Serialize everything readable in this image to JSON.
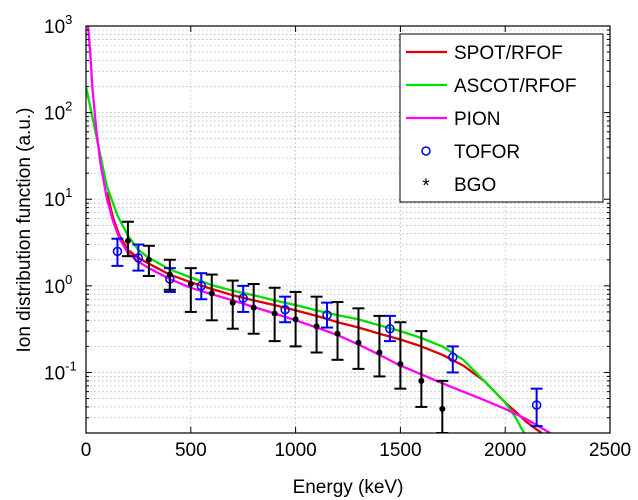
{
  "chart_data": {
    "type": "line",
    "xlabel": "Energy (keV)",
    "ylabel": "Ion distribution function (a.u.)",
    "xlim": [
      0,
      2500
    ],
    "ylim": [
      0.02,
      1000
    ],
    "y_scale": "log",
    "grid": true,
    "legend_position": "top-right",
    "x_ticks": [
      0,
      500,
      1000,
      1500,
      2000,
      2500
    ],
    "x_tick_labels": [
      "0",
      "500",
      "1000",
      "1500",
      "2000",
      "2500"
    ],
    "y_ticks": [
      {
        "value": 0.1,
        "base": "10",
        "exp": "-1"
      },
      {
        "value": 1,
        "base": "10",
        "exp": "0"
      },
      {
        "value": 10,
        "base": "10",
        "exp": "1"
      },
      {
        "value": 100,
        "base": "10",
        "exp": "2"
      },
      {
        "value": 1000,
        "base": "10",
        "exp": "3"
      }
    ],
    "series": [
      {
        "name": "SPOT/RFOF",
        "kind": "line",
        "color": "#e00000",
        "x": [
          100,
          130,
          160,
          200,
          250,
          300,
          400,
          500,
          600,
          700,
          800,
          900,
          1000,
          1100,
          1200,
          1300,
          1400,
          1500,
          1600,
          1700,
          1800,
          1900,
          2000,
          2050,
          2100,
          2150,
          2200
        ],
        "y": [
          12,
          6,
          3.8,
          2.6,
          2.1,
          1.8,
          1.35,
          1.1,
          0.92,
          0.78,
          0.68,
          0.6,
          0.52,
          0.45,
          0.38,
          0.33,
          0.28,
          0.24,
          0.2,
          0.16,
          0.12,
          0.08,
          0.045,
          0.035,
          0.027,
          0.022,
          0.018
        ]
      },
      {
        "name": "ASCOT/RFOF",
        "kind": "line",
        "color": "#00dd00",
        "x": [
          0,
          30,
          60,
          100,
          150,
          200,
          250,
          300,
          400,
          500,
          600,
          700,
          800,
          900,
          1000,
          1100,
          1200,
          1300,
          1400,
          1500,
          1600,
          1700,
          1800,
          1900,
          2000,
          2050,
          2080,
          2110
        ],
        "y": [
          200,
          90,
          40,
          14,
          6.5,
          3.8,
          2.6,
          2.1,
          1.55,
          1.25,
          1.02,
          0.88,
          0.78,
          0.68,
          0.6,
          0.52,
          0.46,
          0.41,
          0.35,
          0.3,
          0.25,
          0.2,
          0.14,
          0.08,
          0.045,
          0.03,
          0.022,
          0.017
        ]
      },
      {
        "name": "PION",
        "kind": "line",
        "color": "#ff00ff",
        "x": [
          0,
          10,
          20,
          30,
          50,
          70,
          100,
          130,
          160,
          200,
          250,
          300,
          400,
          500,
          600,
          700,
          800,
          900,
          1000,
          1100,
          1200,
          1300,
          1400,
          1500,
          1600,
          1700,
          1800,
          1900,
          2000,
          2100,
          2200,
          2230
        ],
        "y": [
          2000,
          1000,
          500,
          200,
          60,
          25,
          10,
          5.5,
          3.5,
          2.4,
          1.9,
          1.6,
          1.2,
          0.95,
          0.8,
          0.68,
          0.57,
          0.48,
          0.4,
          0.33,
          0.27,
          0.21,
          0.16,
          0.12,
          0.095,
          0.075,
          0.06,
          0.048,
          0.038,
          0.029,
          0.021,
          0.019
        ]
      },
      {
        "name": "TOFOR",
        "kind": "errorbar",
        "marker": "circle",
        "color": "#0000ee",
        "x": [
          150,
          250,
          400,
          550,
          750,
          950,
          1150,
          1450,
          1750,
          2150
        ],
        "y": [
          2.5,
          2.1,
          1.2,
          1.0,
          0.72,
          0.53,
          0.46,
          0.32,
          0.15,
          0.042
        ],
        "y_low": [
          1.7,
          1.5,
          0.85,
          0.7,
          0.5,
          0.38,
          0.33,
          0.23,
          0.1,
          0.024
        ],
        "y_high": [
          3.5,
          3.0,
          1.6,
          1.4,
          1.0,
          0.75,
          0.64,
          0.45,
          0.2,
          0.065
        ]
      },
      {
        "name": "BGO",
        "kind": "errorbar",
        "marker": "star",
        "color": "#000000",
        "x": [
          200,
          300,
          400,
          500,
          600,
          700,
          800,
          900,
          1000,
          1100,
          1200,
          1300,
          1400,
          1500,
          1600,
          1700
        ],
        "y": [
          3.3,
          2.0,
          1.35,
          1.05,
          0.82,
          0.64,
          0.56,
          0.48,
          0.41,
          0.34,
          0.28,
          0.22,
          0.17,
          0.125,
          0.08,
          0.038
        ],
        "y_low": [
          2.2,
          1.3,
          0.9,
          0.5,
          0.4,
          0.32,
          0.28,
          0.23,
          0.2,
          0.17,
          0.14,
          0.11,
          0.09,
          0.065,
          0.04,
          0.02
        ],
        "y_high": [
          5.5,
          2.9,
          2.0,
          1.6,
          1.35,
          1.15,
          1.05,
          0.95,
          0.85,
          0.75,
          0.65,
          0.55,
          0.45,
          0.38,
          0.3,
          0.08
        ]
      }
    ]
  }
}
